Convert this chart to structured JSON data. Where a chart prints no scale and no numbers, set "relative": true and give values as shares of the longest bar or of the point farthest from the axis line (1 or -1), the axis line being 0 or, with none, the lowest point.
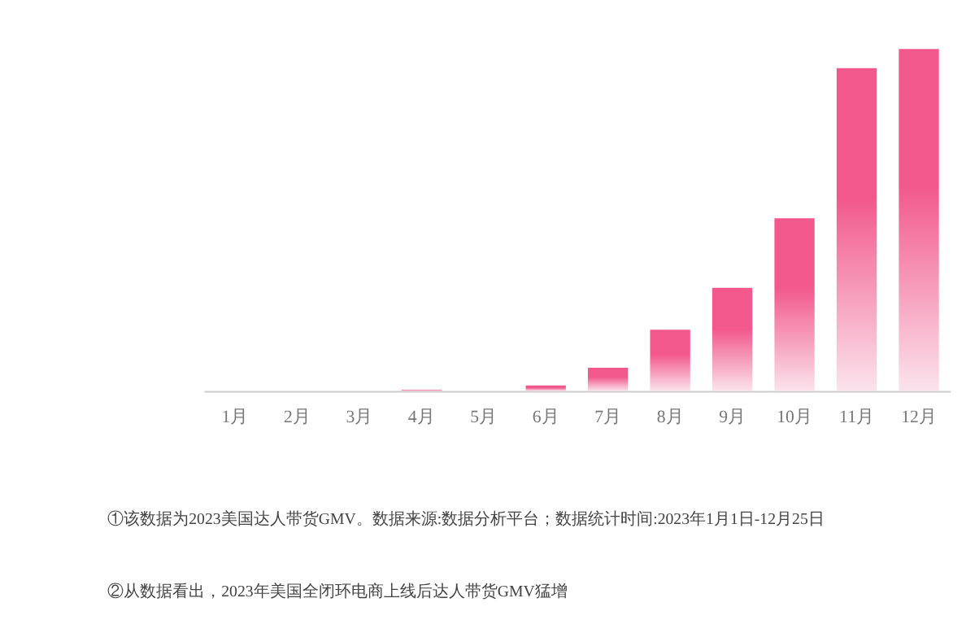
{
  "chart_data": {
    "type": "bar",
    "relative": true,
    "categories": [
      "1月",
      "2月",
      "3月",
      "4月",
      "5月",
      "6月",
      "7月",
      "8月",
      "9月",
      "10月",
      "11月",
      "12月"
    ],
    "values": [
      0,
      0,
      0,
      0.003,
      0,
      0.016,
      0.068,
      0.179,
      0.302,
      0.505,
      0.944,
      1
    ],
    "color": "#f2588c",
    "grid": false,
    "annotations": [
      "①该数据为2023美国达人带货GMV。数据来源:数据分析平台；数据统计时间:2023年1月1日-12月25日",
      "②从数据看出，2023年美国全闭环电商上线后达人带货GMV猛增"
    ]
  }
}
